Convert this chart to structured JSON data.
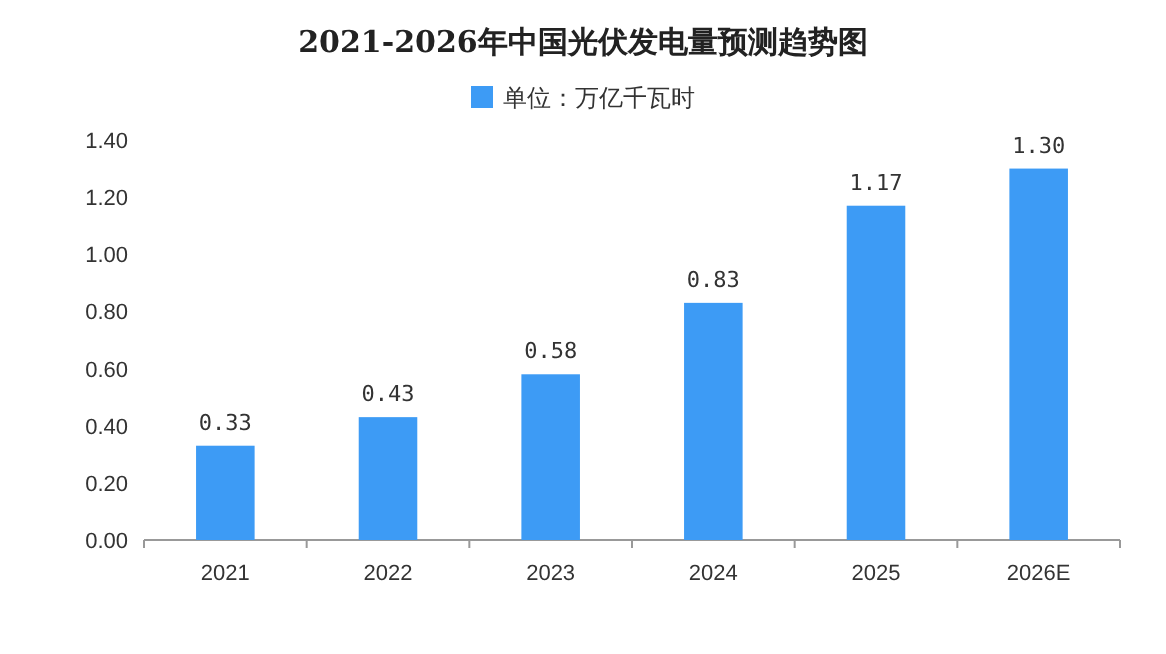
{
  "chart_data": {
    "type": "bar",
    "title": "2021-2026年中国光伏发电量预测趋势图",
    "categories": [
      "2021",
      "2022",
      "2023",
      "2024",
      "2025",
      "2026E"
    ],
    "series": [
      {
        "name": "单位：万亿千瓦时",
        "color": "#3d9bf5",
        "values": [
          0.33,
          0.43,
          0.58,
          0.83,
          1.17,
          1.3
        ],
        "value_labels": [
          "0.33",
          "0.43",
          "0.58",
          "0.83",
          "1.17",
          "1.30"
        ]
      }
    ],
    "ylim": [
      0,
      1.4
    ],
    "yticks": [
      {
        "value": 0,
        "label": "0.00"
      },
      {
        "value": 0.2,
        "label": "0.20"
      },
      {
        "value": 0.4,
        "label": "0.40"
      },
      {
        "value": 0.6,
        "label": "0.60"
      },
      {
        "value": 0.8,
        "label": "0.80"
      },
      {
        "value": 1.0,
        "label": "1.00"
      },
      {
        "value": 1.2,
        "label": "1.20"
      },
      {
        "value": 1.4,
        "label": "1.40"
      }
    ],
    "legend": "top",
    "grid": false
  }
}
